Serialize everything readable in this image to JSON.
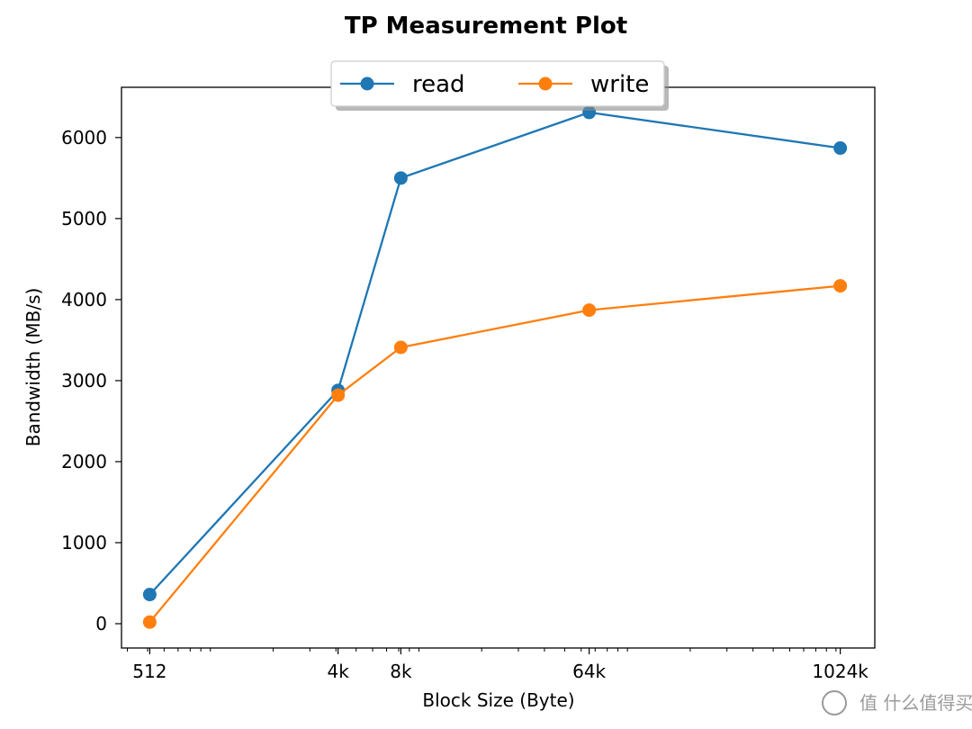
{
  "chart_data": {
    "type": "line",
    "title": "TP Measurement Plot",
    "xlabel": "Block Size (Byte)",
    "ylabel": "Bandwidth (MB/s)",
    "x_scale": "log2",
    "x": [
      512,
      4096,
      8192,
      65536,
      1048576
    ],
    "xtick_labels": [
      "512",
      "4k",
      "8k",
      "64k",
      "1024k"
    ],
    "ylim": [
      -300,
      6620
    ],
    "yticks": [
      0,
      1000,
      2000,
      3000,
      4000,
      5000,
      6000
    ],
    "ytick_labels": [
      "0",
      "1000",
      "2000",
      "3000",
      "4000",
      "5000",
      "6000"
    ],
    "grid": false,
    "legend": "upper-center",
    "series": [
      {
        "name": "read",
        "color": "#1f77b4",
        "marker": "circle",
        "values": [
          360,
          2880,
          5500,
          6310,
          5870
        ]
      },
      {
        "name": "write",
        "color": "#ff7f0e",
        "marker": "circle",
        "values": [
          20,
          2820,
          3410,
          3870,
          4170
        ]
      }
    ]
  },
  "watermark": {
    "text": "值 什么值得买"
  }
}
